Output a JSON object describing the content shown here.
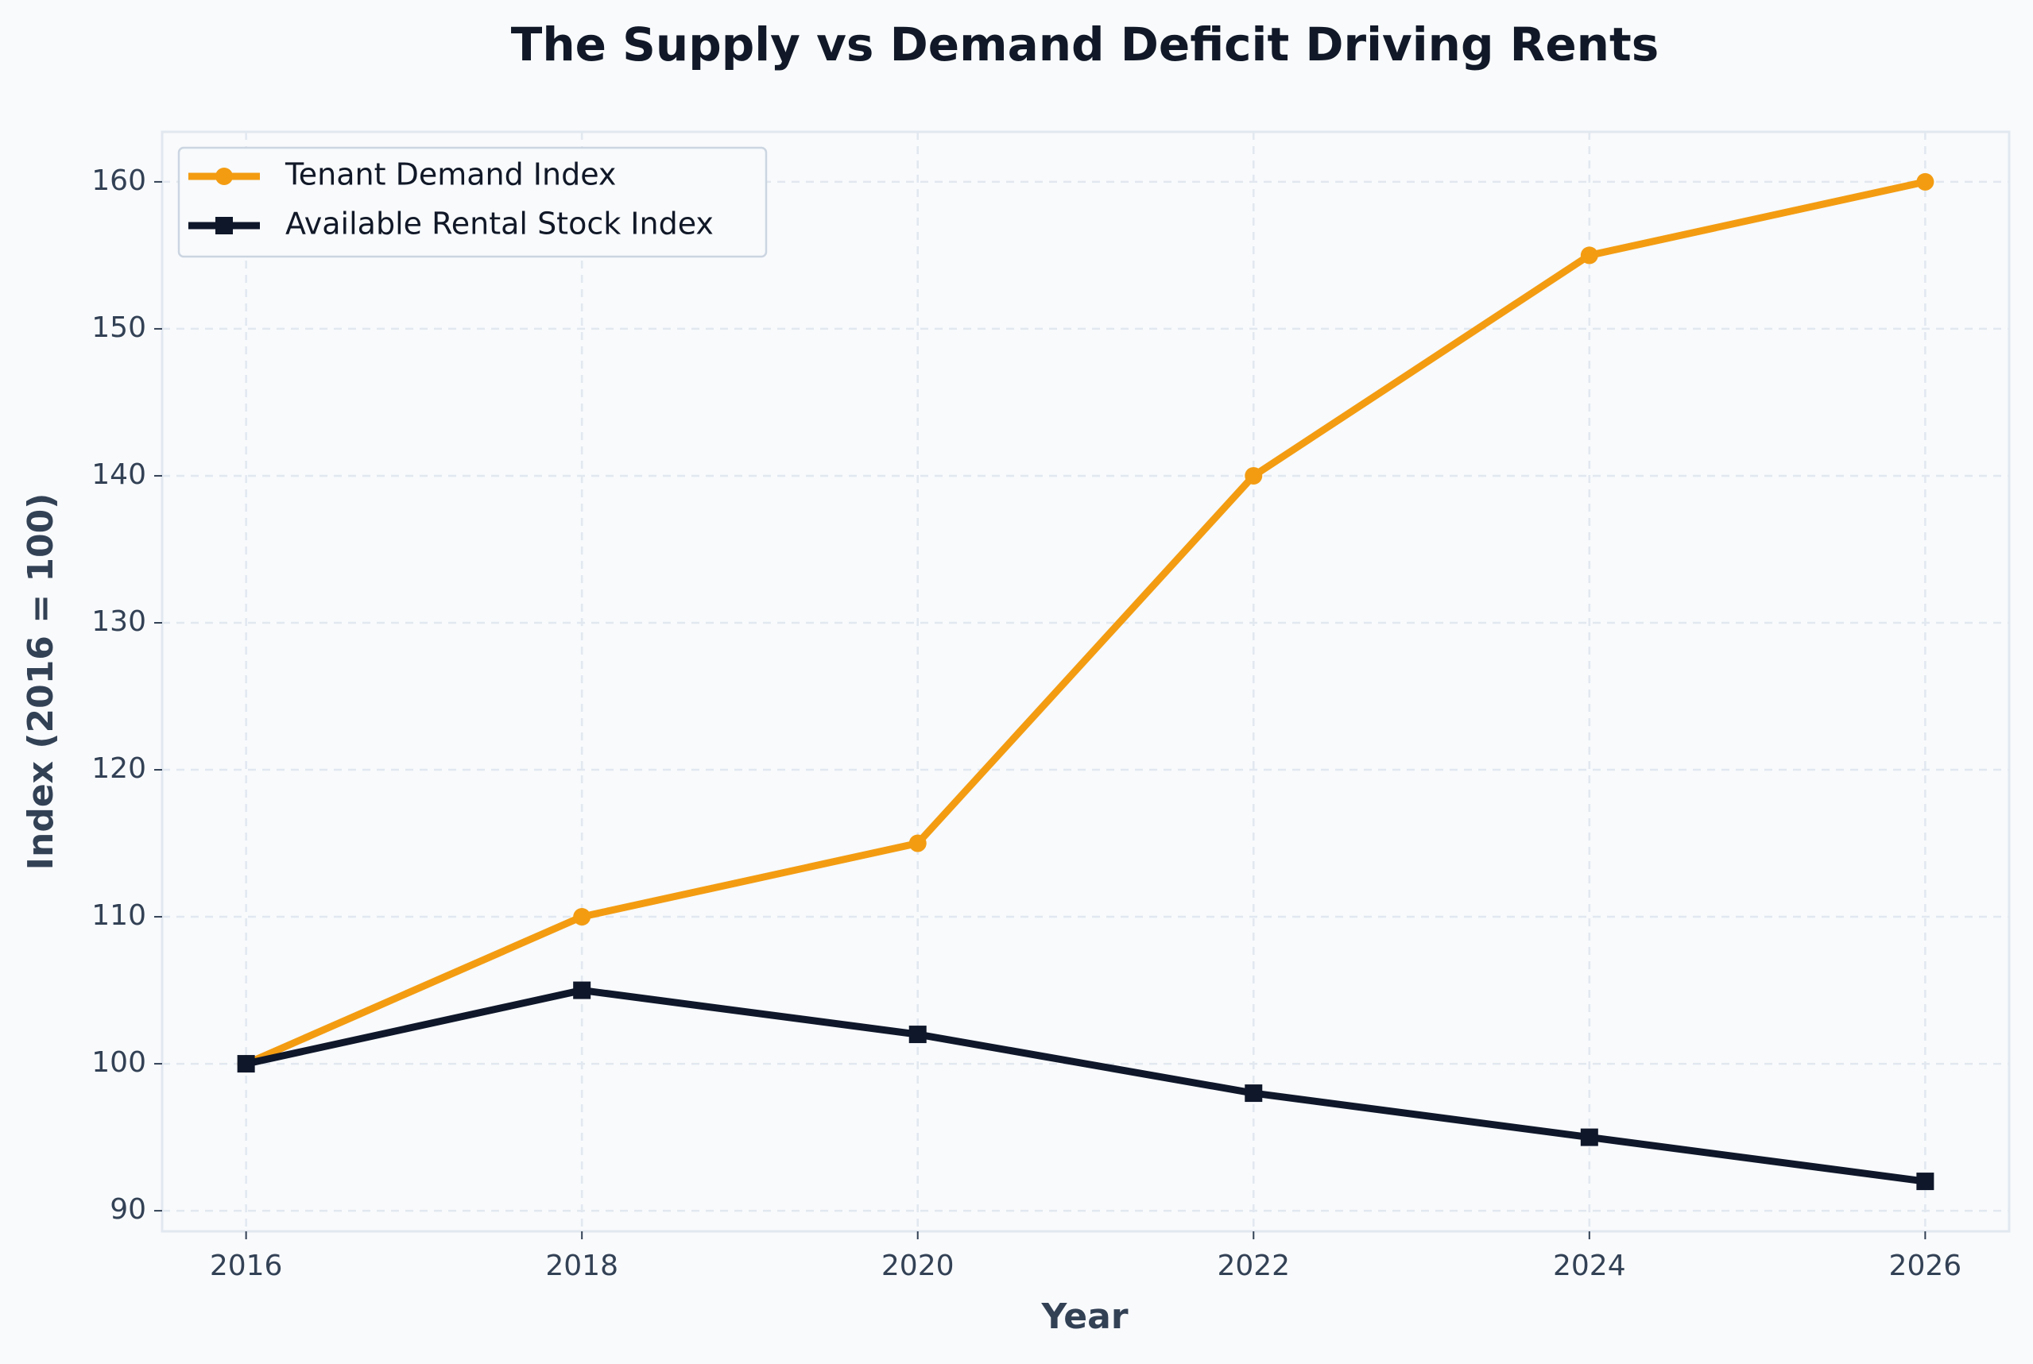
{
  "chart_data": {
    "type": "line",
    "title": "The Supply vs Demand Deficit Driving Rents",
    "x_label": "Year",
    "y_label": "Index (2016 = 100)",
    "x": [
      2016,
      2018,
      2020,
      2022,
      2024,
      2026
    ],
    "series": [
      {
        "name": "Tenant Demand Index",
        "color": "#f39c12",
        "marker": "circle",
        "values": [
          100,
          110,
          115,
          140,
          155,
          160
        ]
      },
      {
        "name": "Available Rental Stock Index",
        "color": "#0f172a",
        "marker": "square",
        "values": [
          100,
          105,
          102,
          98,
          95,
          92
        ]
      }
    ],
    "xlim": [
      2015.5,
      2026.5
    ],
    "xticks": [
      2016,
      2018,
      2020,
      2022,
      2024,
      2026
    ],
    "ylim": [
      88.6,
      163.4
    ],
    "yticks": [
      90,
      100,
      110,
      120,
      130,
      140,
      150,
      160
    ],
    "grid": true,
    "legend": "upper left"
  }
}
